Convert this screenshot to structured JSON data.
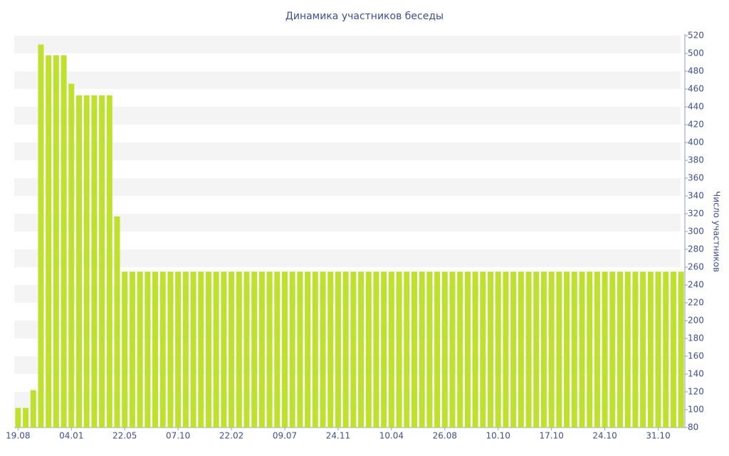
{
  "chart_data": {
    "type": "bar",
    "title": "Динамика участников беседы",
    "y_label": "Число участников",
    "color": "#bfe02e",
    "categories": [
      "19.08",
      null,
      null,
      null,
      null,
      null,
      null,
      "04.01",
      null,
      null,
      null,
      null,
      null,
      null,
      "22.05",
      null,
      null,
      null,
      null,
      null,
      null,
      "07.10",
      null,
      null,
      null,
      null,
      null,
      null,
      "22.02",
      null,
      null,
      null,
      null,
      null,
      null,
      "09.07",
      null,
      null,
      null,
      null,
      null,
      null,
      "24.11",
      null,
      null,
      null,
      null,
      null,
      null,
      "10.04",
      null,
      null,
      null,
      null,
      null,
      null,
      "26.08",
      null,
      null,
      null,
      null,
      null,
      null,
      "10.10",
      null,
      null,
      null,
      null,
      null,
      null,
      "17.10",
      null,
      null,
      null,
      null,
      null,
      null,
      "24.10",
      null,
      null,
      null,
      null,
      null,
      null,
      "31.10",
      null,
      null,
      null
    ],
    "values": [
      102,
      102,
      122,
      510,
      498,
      498,
      498,
      466,
      453,
      453,
      453,
      453,
      453,
      317,
      255,
      255,
      255,
      255,
      255,
      255,
      255,
      255,
      255,
      255,
      255,
      255,
      255,
      255,
      255,
      255,
      255,
      255,
      255,
      255,
      255,
      255,
      255,
      255,
      255,
      255,
      255,
      255,
      255,
      255,
      255,
      255,
      255,
      255,
      255,
      255,
      255,
      255,
      255,
      255,
      255,
      255,
      255,
      255,
      255,
      255,
      255,
      255,
      255,
      255,
      255,
      255,
      255,
      255,
      255,
      255,
      255,
      255,
      255,
      255,
      255,
      255,
      255,
      255,
      255,
      255,
      255,
      255,
      255,
      255,
      255,
      255,
      255,
      255
    ],
    "ylim": [
      80,
      520
    ],
    "yticks": [
      80,
      100,
      120,
      140,
      160,
      180,
      200,
      220,
      240,
      260,
      280,
      300,
      320,
      340,
      360,
      380,
      400,
      420,
      440,
      460,
      480,
      500,
      520
    ],
    "y_axis_side": "right",
    "grid": true
  }
}
